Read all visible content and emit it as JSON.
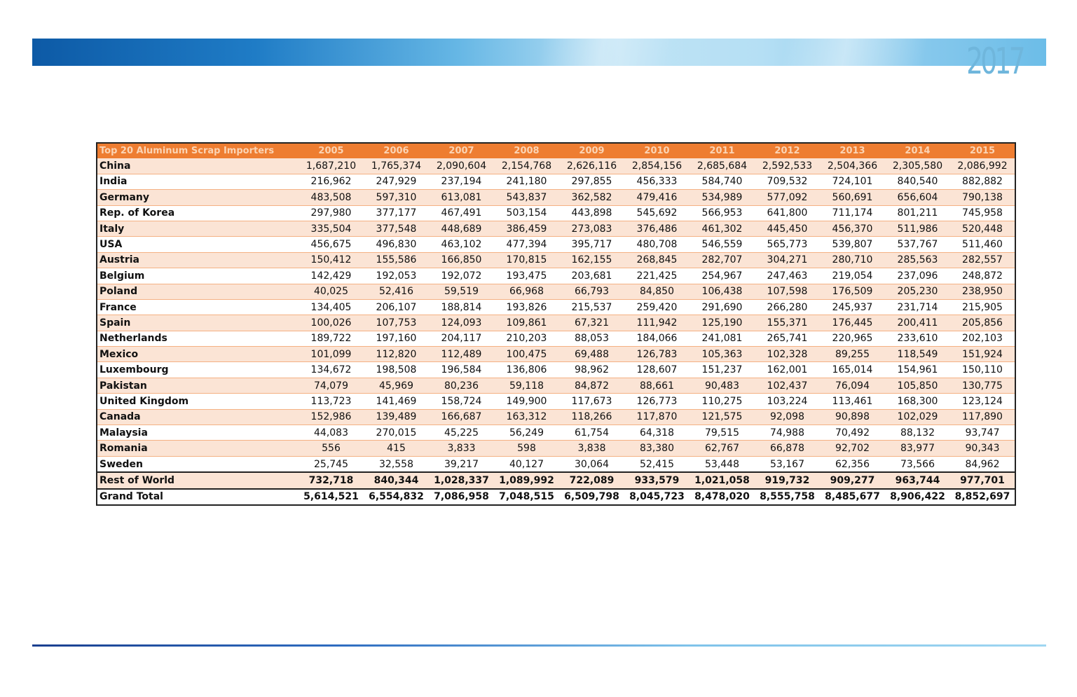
{
  "header": {
    "year": "2017"
  },
  "table": {
    "title": "Top 20 Aluminum Scrap Importers",
    "years": [
      "2005",
      "2006",
      "2007",
      "2008",
      "2009",
      "2010",
      "2011",
      "2012",
      "2013",
      "2014",
      "2015"
    ],
    "rows": [
      {
        "name": "China",
        "values": [
          "1,687,210",
          "1,765,374",
          "2,090,604",
          "2,154,768",
          "2,626,116",
          "2,854,156",
          "2,685,684",
          "2,592,533",
          "2,504,366",
          "2,305,580",
          "2,086,992"
        ]
      },
      {
        "name": "India",
        "values": [
          "216,962",
          "247,929",
          "237,194",
          "241,180",
          "297,855",
          "456,333",
          "584,740",
          "709,532",
          "724,101",
          "840,540",
          "882,882"
        ]
      },
      {
        "name": "Germany",
        "values": [
          "483,508",
          "597,310",
          "613,081",
          "543,837",
          "362,582",
          "479,416",
          "534,989",
          "577,092",
          "560,691",
          "656,604",
          "790,138"
        ]
      },
      {
        "name": "Rep. of Korea",
        "values": [
          "297,980",
          "377,177",
          "467,491",
          "503,154",
          "443,898",
          "545,692",
          "566,953",
          "641,800",
          "711,174",
          "801,211",
          "745,958"
        ]
      },
      {
        "name": "Italy",
        "values": [
          "335,504",
          "377,548",
          "448,689",
          "386,459",
          "273,083",
          "376,486",
          "461,302",
          "445,450",
          "456,370",
          "511,986",
          "520,448"
        ]
      },
      {
        "name": "USA",
        "values": [
          "456,675",
          "496,830",
          "463,102",
          "477,394",
          "395,717",
          "480,708",
          "546,559",
          "565,773",
          "539,807",
          "537,767",
          "511,460"
        ]
      },
      {
        "name": "Austria",
        "values": [
          "150,412",
          "155,586",
          "166,850",
          "170,815",
          "162,155",
          "268,845",
          "282,707",
          "304,271",
          "280,710",
          "285,563",
          "282,557"
        ]
      },
      {
        "name": "Belgium",
        "values": [
          "142,429",
          "192,053",
          "192,072",
          "193,475",
          "203,681",
          "221,425",
          "254,967",
          "247,463",
          "219,054",
          "237,096",
          "248,872"
        ]
      },
      {
        "name": "Poland",
        "values": [
          "40,025",
          "52,416",
          "59,519",
          "66,968",
          "66,793",
          "84,850",
          "106,438",
          "107,598",
          "176,509",
          "205,230",
          "238,950"
        ]
      },
      {
        "name": "France",
        "values": [
          "134,405",
          "206,107",
          "188,814",
          "193,826",
          "215,537",
          "259,420",
          "291,690",
          "266,280",
          "245,937",
          "231,714",
          "215,905"
        ]
      },
      {
        "name": "Spain",
        "values": [
          "100,026",
          "107,753",
          "124,093",
          "109,861",
          "67,321",
          "111,942",
          "125,190",
          "155,371",
          "176,445",
          "200,411",
          "205,856"
        ]
      },
      {
        "name": "Netherlands",
        "values": [
          "189,722",
          "197,160",
          "204,117",
          "210,203",
          "88,053",
          "184,066",
          "241,081",
          "265,741",
          "220,965",
          "233,610",
          "202,103"
        ]
      },
      {
        "name": "Mexico",
        "values": [
          "101,099",
          "112,820",
          "112,489",
          "100,475",
          "69,488",
          "126,783",
          "105,363",
          "102,328",
          "89,255",
          "118,549",
          "151,924"
        ]
      },
      {
        "name": "Luxembourg",
        "values": [
          "134,672",
          "198,508",
          "196,584",
          "136,806",
          "98,962",
          "128,607",
          "151,237",
          "162,001",
          "165,014",
          "154,961",
          "150,110"
        ]
      },
      {
        "name": "Pakistan",
        "values": [
          "74,079",
          "45,969",
          "80,236",
          "59,118",
          "84,872",
          "88,661",
          "90,483",
          "102,437",
          "76,094",
          "105,850",
          "130,775"
        ]
      },
      {
        "name": "United Kingdom",
        "values": [
          "113,723",
          "141,469",
          "158,724",
          "149,900",
          "117,673",
          "126,773",
          "110,275",
          "103,224",
          "113,461",
          "168,300",
          "123,124"
        ]
      },
      {
        "name": "Canada",
        "values": [
          "152,986",
          "139,489",
          "166,687",
          "163,312",
          "118,266",
          "117,870",
          "121,575",
          "92,098",
          "90,898",
          "102,029",
          "117,890"
        ]
      },
      {
        "name": "Malaysia",
        "values": [
          "44,083",
          "270,015",
          "45,225",
          "56,249",
          "61,754",
          "64,318",
          "79,515",
          "74,988",
          "70,492",
          "88,132",
          "93,747"
        ]
      },
      {
        "name": "Romania",
        "values": [
          "556",
          "415",
          "3,833",
          "598",
          "3,838",
          "83,380",
          "62,767",
          "66,878",
          "92,702",
          "83,977",
          "90,343"
        ]
      },
      {
        "name": "Sweden",
        "values": [
          "25,745",
          "32,558",
          "39,217",
          "40,127",
          "30,064",
          "52,415",
          "53,448",
          "53,167",
          "62,356",
          "73,566",
          "84,962"
        ]
      }
    ],
    "rest_of_world": {
      "name": "Rest of World",
      "values": [
        "732,718",
        "840,344",
        "1,028,337",
        "1,089,992",
        "722,089",
        "933,579",
        "1,021,058",
        "919,732",
        "909,277",
        "963,744",
        "977,701"
      ]
    },
    "grand_total": {
      "name": "Grand Total",
      "values": [
        "5,614,521",
        "6,554,832",
        "7,086,958",
        "7,048,515",
        "6,509,798",
        "8,045,723",
        "8,478,020",
        "8,555,758",
        "8,485,677",
        "8,906,422",
        "8,852,697"
      ]
    }
  },
  "colors": {
    "header_orange": "#ee7d31",
    "row_band": "#fbe4d5",
    "year_blue": "#6fb6dc"
  }
}
